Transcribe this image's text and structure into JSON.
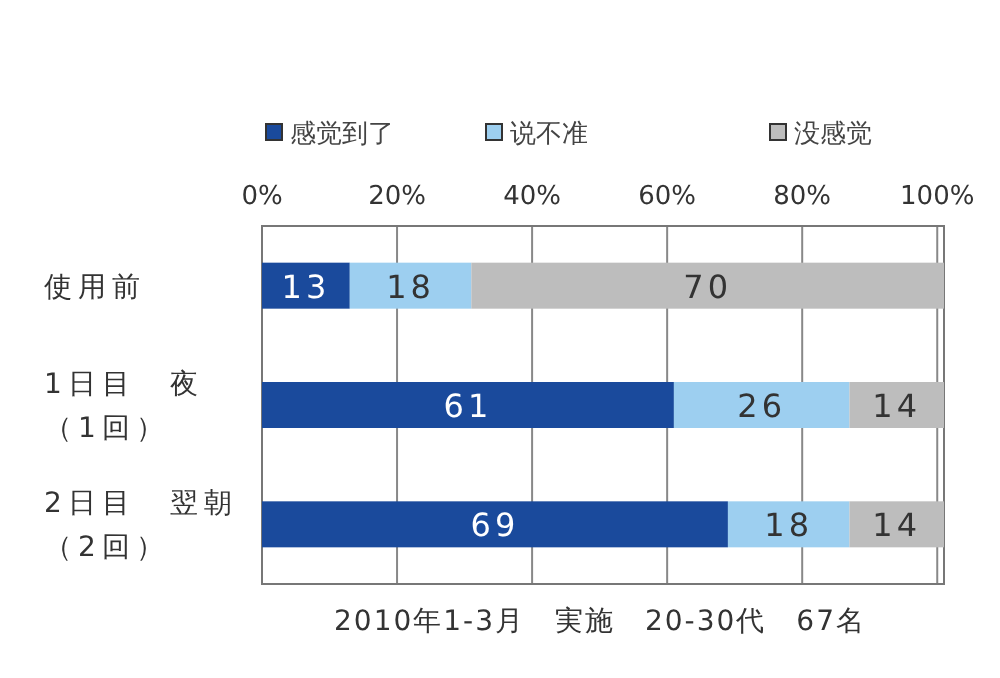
{
  "chart_data": {
    "type": "bar",
    "orientation": "horizontal",
    "stacked": true,
    "data_labels": true,
    "legend": "top",
    "grid": "x",
    "categories": [
      "使用前",
      "1日目　夜（1回）",
      "2日目　翌朝（2回）"
    ],
    "series": [
      {
        "name": "感觉到了",
        "color": "#1a4a9c",
        "values": [
          13,
          61,
          69
        ]
      },
      {
        "name": "说不准",
        "color": "#9dcff0",
        "values": [
          18,
          26,
          18
        ]
      },
      {
        "name": "没感觉",
        "color": "#bdbdbd",
        "values": [
          70,
          14,
          14
        ]
      }
    ],
    "xlim": [
      0,
      101
    ],
    "xticks": [
      {
        "value": 0,
        "label": "0%"
      },
      {
        "value": 20,
        "label": "20%"
      },
      {
        "value": 40,
        "label": "40%"
      },
      {
        "value": 60,
        "label": "60%"
      },
      {
        "value": 80,
        "label": "80%"
      },
      {
        "value": 100,
        "label": "100%"
      }
    ],
    "annotations": [
      "2010年1-3月　実施　20-30代　67名"
    ]
  }
}
